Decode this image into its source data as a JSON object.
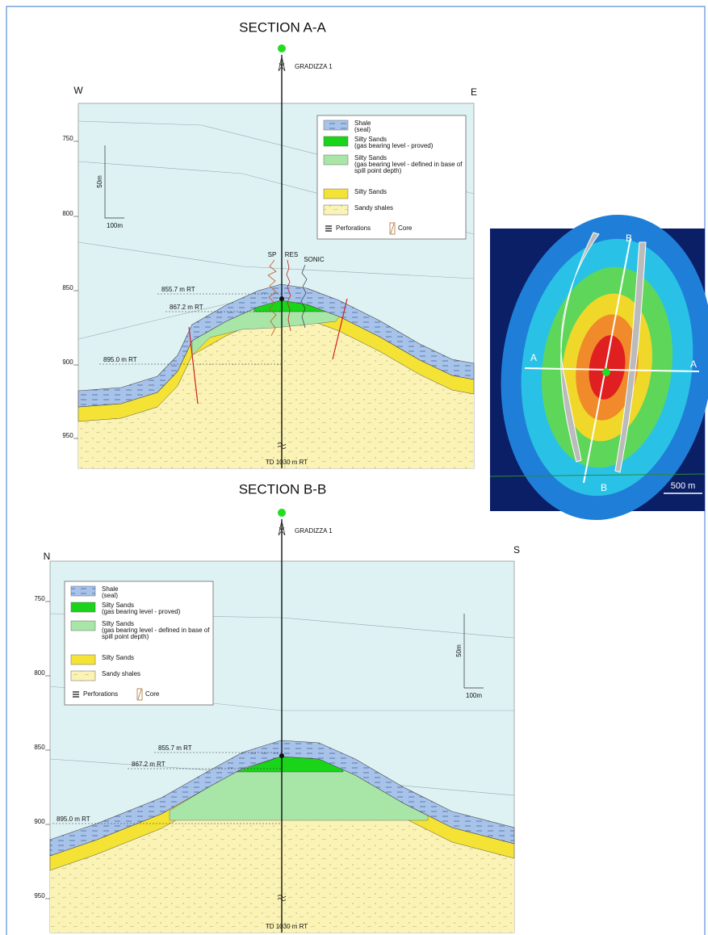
{
  "section_a": {
    "title": "SECTION A-A",
    "well_name": "GRADIZZA 1",
    "direction_left": "W",
    "direction_right": "E",
    "depth_labels": [
      "750",
      "800",
      "850",
      "900",
      "950"
    ],
    "scale_vertical": "50m",
    "scale_horizontal": "100m",
    "legend": [
      {
        "lines": [
          "Shale",
          "(seal)"
        ]
      },
      {
        "lines": [
          "Silty Sands",
          "(gas bearing level - proved)"
        ]
      },
      {
        "lines": [
          "Silty Sands",
          "(gas bearing level - defined in base of",
          "spill point depth)"
        ]
      },
      {
        "lines": [
          "Silty Sands"
        ]
      },
      {
        "lines": [
          "Sandy shales"
        ]
      }
    ],
    "perforations": "Perforations",
    "core": "Core",
    "log_labels": [
      "SP",
      "RES",
      "SONIC"
    ],
    "depth_markers": [
      "855.7 m RT",
      "867.2 m RT",
      "895.0 m RT"
    ],
    "total_depth": "TD 1030 m RT"
  },
  "map": {
    "labels": [
      "A",
      "A",
      "B",
      "B"
    ],
    "scale": "500 m"
  },
  "section_b": {
    "title": "SECTION B-B",
    "well_name": "GRADIZZA 1",
    "direction_left": "N",
    "direction_right": "S",
    "depth_labels": [
      "750",
      "800",
      "850",
      "900",
      "950"
    ],
    "scale_vertical": "50m",
    "scale_horizontal": "100m",
    "legend": [
      {
        "lines": [
          "Shale",
          "(seal)"
        ]
      },
      {
        "lines": [
          "Silty Sands",
          "(gas bearing level - proved)"
        ]
      },
      {
        "lines": [
          "Silty Sands",
          "(gas bearing level - defined in base of",
          "spill point depth)"
        ]
      },
      {
        "lines": [
          "Silty Sands"
        ]
      },
      {
        "lines": [
          "Sandy shales"
        ]
      }
    ],
    "perforations": "Perforations",
    "core": "Core",
    "depth_markers": [
      "855.7 m RT",
      "867.2 m RT",
      "895.0 m RT"
    ],
    "total_depth": "TD 1030 m RT"
  }
}
